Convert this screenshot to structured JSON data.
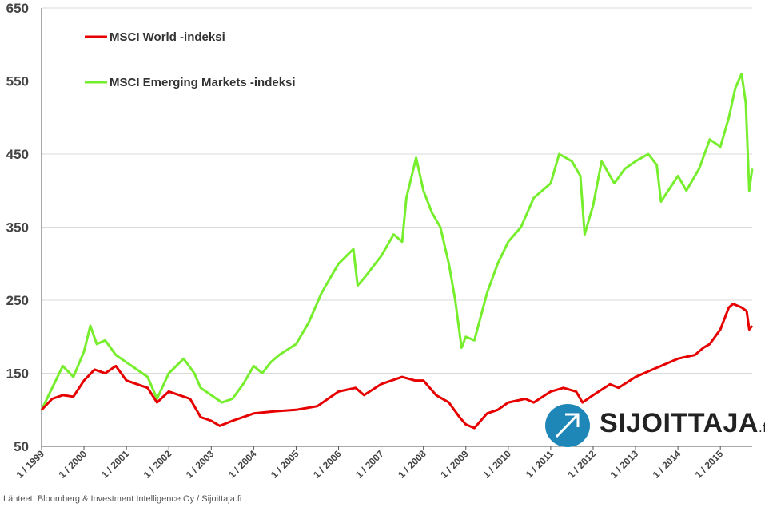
{
  "chart_data": {
    "type": "line",
    "title": "",
    "xlabel": "",
    "ylabel": "",
    "x_range": [
      1999.0,
      2015.75
    ],
    "ylim": [
      50,
      650
    ],
    "y_ticks": [
      50,
      150,
      250,
      350,
      450,
      550,
      650
    ],
    "x_ticks": [
      {
        "label": "1 / 1999",
        "x": 1999
      },
      {
        "label": "1 / 2000",
        "x": 2000
      },
      {
        "label": "1 / 2001",
        "x": 2001
      },
      {
        "label": "1 / 2002",
        "x": 2002
      },
      {
        "label": "1 / 2003",
        "x": 2003
      },
      {
        "label": "1 / 2004",
        "x": 2004
      },
      {
        "label": "1 / 2005",
        "x": 2005
      },
      {
        "label": "1 / 2006",
        "x": 2006
      },
      {
        "label": "1 / 2007",
        "x": 2007
      },
      {
        "label": "1 / 2008",
        "x": 2008
      },
      {
        "label": "1 / 2009",
        "x": 2009
      },
      {
        "label": "1 / 2010",
        "x": 2010
      },
      {
        "label": "1 / 2011",
        "x": 2011
      },
      {
        "label": "1 / 2012",
        "x": 2012
      },
      {
        "label": "1 / 2013",
        "x": 2013
      },
      {
        "label": "1 / 2014",
        "x": 2014
      },
      {
        "label": "1 / 2015",
        "x": 2015
      }
    ],
    "grid": true,
    "legend_position": "top-left",
    "series": [
      {
        "name": "MSCI World -indeksi",
        "color": "#e60000",
        "x": [
          1999.0,
          1999.25,
          1999.5,
          1999.75,
          2000.0,
          2000.25,
          2000.5,
          2000.75,
          2001.0,
          2001.25,
          2001.5,
          2001.72,
          2002.0,
          2002.25,
          2002.5,
          2002.75,
          2003.0,
          2003.2,
          2003.5,
          2003.75,
          2004.0,
          2004.5,
          2005.0,
          2005.5,
          2006.0,
          2006.4,
          2006.6,
          2007.0,
          2007.5,
          2007.8,
          2008.0,
          2008.3,
          2008.6,
          2008.85,
          2009.0,
          2009.2,
          2009.5,
          2009.75,
          2010.0,
          2010.4,
          2010.6,
          2011.0,
          2011.3,
          2011.6,
          2011.75,
          2012.0,
          2012.4,
          2012.6,
          2013.0,
          2013.4,
          2013.6,
          2014.0,
          2014.4,
          2014.6,
          2014.75,
          2015.0,
          2015.2,
          2015.3,
          2015.5,
          2015.62,
          2015.68,
          2015.75
        ],
        "values": [
          100,
          115,
          120,
          118,
          140,
          155,
          150,
          160,
          140,
          135,
          130,
          110,
          125,
          120,
          115,
          90,
          85,
          78,
          85,
          90,
          95,
          98,
          100,
          105,
          125,
          130,
          120,
          135,
          145,
          140,
          140,
          120,
          110,
          90,
          80,
          75,
          95,
          100,
          110,
          115,
          110,
          125,
          130,
          125,
          110,
          120,
          135,
          130,
          145,
          155,
          160,
          170,
          175,
          185,
          190,
          210,
          240,
          245,
          240,
          235,
          210,
          215
        ]
      },
      {
        "name": "MSCI Emerging Markets -indeksi",
        "color": "#77ee2d",
        "x": [
          1999.0,
          1999.25,
          1999.5,
          1999.75,
          2000.0,
          2000.15,
          2000.3,
          2000.5,
          2000.75,
          2001.0,
          2001.25,
          2001.5,
          2001.72,
          2002.0,
          2002.35,
          2002.6,
          2002.75,
          2003.0,
          2003.25,
          2003.5,
          2003.75,
          2004.0,
          2004.2,
          2004.4,
          2004.6,
          2005.0,
          2005.3,
          2005.6,
          2006.0,
          2006.35,
          2006.45,
          2006.6,
          2007.0,
          2007.3,
          2007.5,
          2007.6,
          2007.83,
          2008.0,
          2008.2,
          2008.4,
          2008.6,
          2008.75,
          2008.9,
          2009.0,
          2009.2,
          2009.5,
          2009.75,
          2010.0,
          2010.3,
          2010.6,
          2011.0,
          2011.2,
          2011.5,
          2011.7,
          2011.8,
          2012.0,
          2012.2,
          2012.5,
          2012.75,
          2013.0,
          2013.3,
          2013.5,
          2013.6,
          2014.0,
          2014.2,
          2014.5,
          2014.75,
          2015.0,
          2015.2,
          2015.35,
          2015.5,
          2015.6,
          2015.68,
          2015.75
        ],
        "values": [
          100,
          130,
          160,
          145,
          180,
          215,
          190,
          195,
          175,
          165,
          155,
          145,
          115,
          150,
          170,
          150,
          130,
          120,
          110,
          115,
          135,
          160,
          150,
          165,
          175,
          190,
          220,
          260,
          300,
          320,
          270,
          280,
          310,
          340,
          330,
          390,
          445,
          400,
          370,
          350,
          300,
          250,
          185,
          200,
          195,
          260,
          300,
          330,
          350,
          390,
          410,
          450,
          440,
          420,
          340,
          380,
          440,
          410,
          430,
          440,
          450,
          435,
          385,
          420,
          400,
          430,
          470,
          460,
          500,
          540,
          560,
          520,
          400,
          430
        ]
      }
    ]
  },
  "source_text": "Lähteet: Bloomberg & Investment Intelligence Oy / Sijoittaja.fi",
  "logo": {
    "text_main": "SIJOITTAJA",
    "text_suffix": ".fi",
    "badge_color": "#1e87b8"
  }
}
